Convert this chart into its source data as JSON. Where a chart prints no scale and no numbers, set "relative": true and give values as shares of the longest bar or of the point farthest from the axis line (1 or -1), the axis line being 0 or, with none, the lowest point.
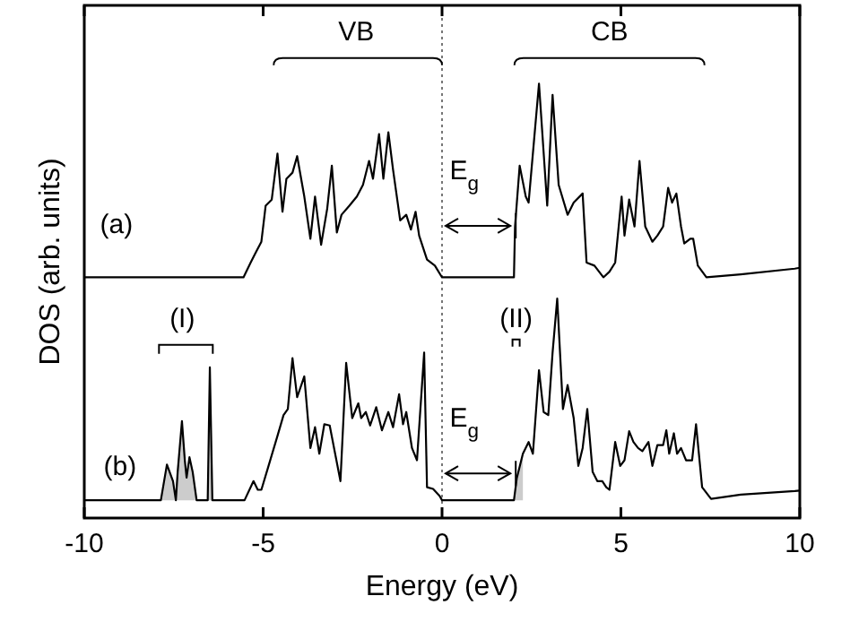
{
  "chart_data": {
    "type": "line",
    "relative": true,
    "xlabel": "Energy (eV)",
    "ylabel": "DOS (arb. units)",
    "xlim": [
      -10,
      10
    ],
    "xticks": [
      -10,
      -5,
      0,
      5,
      10
    ],
    "tick_labels": "x",
    "grid": false,
    "line_style": "solid",
    "series": [
      {
        "color": "#000000",
        "x": [
          -10,
          -5.55,
          -5.35,
          -5.22,
          -5.05,
          -4.93,
          -4.76,
          -4.6,
          -4.46,
          -4.35,
          -4.18,
          -4.05,
          -3.85,
          -3.68,
          -3.55,
          -3.38,
          -3.21,
          -3.08,
          -2.94,
          -2.81,
          -2.59,
          -2.38,
          -2.21,
          -2.04,
          -1.93,
          -1.76,
          -1.64,
          -1.5,
          -1.37,
          -1.17,
          -1.0,
          -0.87,
          -0.74,
          -0.64,
          -0.42,
          -0.2,
          0,
          2.01,
          2.04,
          2.17,
          2.34,
          2.42,
          2.71,
          2.94,
          3.09,
          3.26,
          3.51,
          3.68,
          3.93,
          4.04,
          4.26,
          4.51,
          4.68,
          4.84,
          5.02,
          5.1,
          5.23,
          5.38,
          5.52,
          5.68,
          5.88,
          6.02,
          6.18,
          6.32,
          6.43,
          6.55,
          6.68,
          6.77,
          6.94,
          7.02,
          7.15,
          7.39,
          8.35,
          9.86,
          10
        ],
        "values": [
          0.554,
          0.554,
          0.588,
          0.609,
          0.636,
          0.719,
          0.733,
          0.839,
          0.705,
          0.781,
          0.795,
          0.833,
          0.74,
          0.643,
          0.74,
          0.629,
          0.712,
          0.811,
          0.657,
          0.698,
          0.719,
          0.74,
          0.767,
          0.822,
          0.781,
          0.884,
          0.781,
          0.888,
          0.802,
          0.685,
          0.698,
          0.664,
          0.705,
          0.65,
          0.595,
          0.581,
          0.554,
          0.554,
          0.671,
          0.811,
          0.74,
          0.726,
          1,
          0.719,
          0.974,
          0.767,
          0.698,
          0.726,
          0.747,
          0.588,
          0.581,
          0.554,
          0.567,
          0.588,
          0.74,
          0.65,
          0.733,
          0.671,
          0.822,
          0.671,
          0.636,
          0.65,
          0.671,
          0.76,
          0.726,
          0.747,
          0.671,
          0.632,
          0.643,
          0.643,
          0.581,
          0.554,
          0.561,
          0.574,
          0.576
        ]
      },
      {
        "color": "#000000",
        "x": [
          -10,
          -7.86,
          -7.69,
          -7.52,
          -7.44,
          -7.39,
          -7.27,
          -7.19,
          -7.14,
          -7.06,
          -6.97,
          -6.86,
          -6.55,
          -6.49,
          -6.42,
          -5.52,
          -5.27,
          -5.15,
          -5.05,
          -4.85,
          -4.6,
          -4.43,
          -4.31,
          -4.18,
          -4.05,
          -3.85,
          -3.68,
          -3.55,
          -3.43,
          -3.29,
          -3.14,
          -2.84,
          -2.68,
          -2.51,
          -2.34,
          -2.26,
          -2.13,
          -2.01,
          -1.84,
          -1.68,
          -1.5,
          -1.37,
          -1.2,
          -1.09,
          -1.0,
          -0.84,
          -0.7,
          -0.5,
          -0.42,
          -0.25,
          -0.07,
          0,
          2.01,
          2.09,
          2.26,
          2.42,
          2.54,
          2.71,
          2.84,
          2.97,
          3.09,
          3.22,
          3.38,
          3.51,
          3.68,
          3.81,
          3.93,
          4.06,
          4.21,
          4.34,
          4.48,
          4.59,
          4.68,
          4.84,
          4.98,
          5.1,
          5.23,
          5.35,
          5.48,
          5.6,
          5.77,
          5.88,
          6.02,
          6.18,
          6.27,
          6.35,
          6.48,
          6.57,
          6.68,
          6.82,
          6.99,
          7.1,
          7.27,
          7.52,
          8.35,
          9.86,
          10
        ],
        "values": [
          0.041,
          0.041,
          0.123,
          0.085,
          0.041,
          0.106,
          0.223,
          0.133,
          0.093,
          0.14,
          0.106,
          0.041,
          0.041,
          0.347,
          0.041,
          0.041,
          0.085,
          0.065,
          0.065,
          0.12,
          0.189,
          0.237,
          0.251,
          0.368,
          0.278,
          0.326,
          0.161,
          0.209,
          0.148,
          0.216,
          0.213,
          0.085,
          0.357,
          0.23,
          0.264,
          0.23,
          0.244,
          0.213,
          0.255,
          0.202,
          0.244,
          0.209,
          0.285,
          0.216,
          0.244,
          0.161,
          0.133,
          0.381,
          0.071,
          0.067,
          0.051,
          0.041,
          0.041,
          0.092,
          0.148,
          0.175,
          0.148,
          0.34,
          0.244,
          0.237,
          0.381,
          0.505,
          0.251,
          0.306,
          0.23,
          0.12,
          0.161,
          0.251,
          0.106,
          0.085,
          0.085,
          0.071,
          0.065,
          0.175,
          0.12,
          0.133,
          0.2,
          0.175,
          0.161,
          0.154,
          0.175,
          0.12,
          0.168,
          0.168,
          0.202,
          0.148,
          0.195,
          0.148,
          0.161,
          0.133,
          0.133,
          0.216,
          0.071,
          0.044,
          0.054,
          0.062,
          0.063
        ]
      },
      {
        "type": "area",
        "color": "#cccccc",
        "x": [
          -7.86,
          -7.69,
          -7.52,
          -7.44,
          -7.39,
          -7.27,
          -7.19,
          -7.14,
          -7.06,
          -6.97,
          -6.86,
          -6.55,
          -6.49,
          -6.42
        ],
        "values": [
          0.041,
          0.123,
          0.085,
          0.041,
          0.106,
          0.223,
          0.133,
          0.093,
          0.14,
          0.106,
          0.041,
          0.041,
          0.347,
          0.041
        ]
      },
      {
        "type": "area",
        "color": "#cccccc",
        "x": [
          2.01,
          2.09,
          2.26
        ],
        "values": [
          0.041,
          0.092,
          0.148
        ]
      }
    ],
    "ref_lines": [
      {
        "axis": "x",
        "value": 0,
        "color": "#555555",
        "line_style": "dotted"
      }
    ],
    "annotations": [
      "VB",
      "CB",
      "E$_{g}$",
      "E$_{g}$",
      "(I)",
      "(II)",
      "(a)",
      "(b)"
    ]
  }
}
